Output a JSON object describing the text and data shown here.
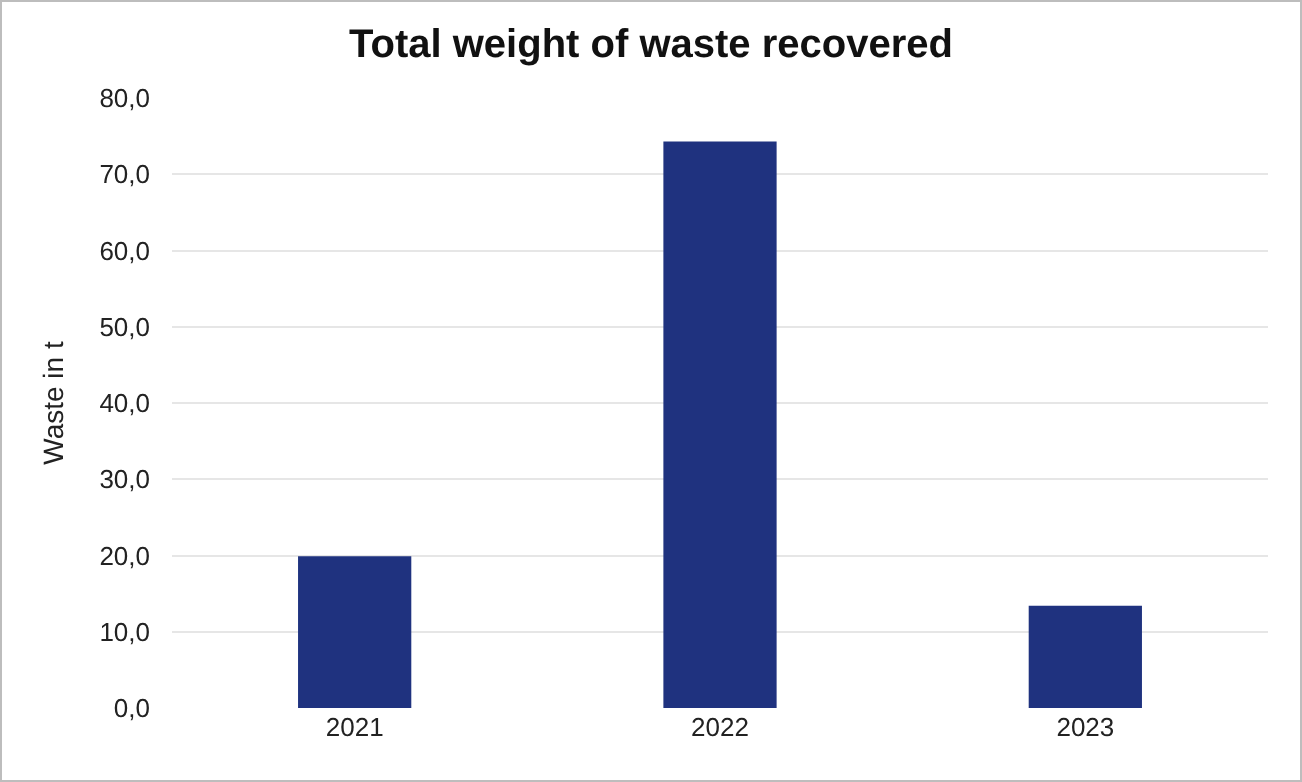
{
  "chart_data": {
    "type": "bar",
    "title": "Total weight of waste recovered",
    "ylabel": "Waste in t",
    "categories": [
      "2021",
      "2022",
      "2023"
    ],
    "values": [
      19.9,
      74.3,
      13.4
    ],
    "color": "#1f327f",
    "ylim": [
      0,
      80
    ],
    "yticks": [
      {
        "value": 0,
        "label": "0,0"
      },
      {
        "value": 10,
        "label": "10,0"
      },
      {
        "value": 20,
        "label": "20,0"
      },
      {
        "value": 30,
        "label": "30,0"
      },
      {
        "value": 40,
        "label": "40,0"
      },
      {
        "value": 50,
        "label": "50,0"
      },
      {
        "value": 60,
        "label": "60,0"
      },
      {
        "value": 70,
        "label": "70,0"
      },
      {
        "value": 80,
        "label": "80,0"
      }
    ],
    "grid": "y"
  }
}
